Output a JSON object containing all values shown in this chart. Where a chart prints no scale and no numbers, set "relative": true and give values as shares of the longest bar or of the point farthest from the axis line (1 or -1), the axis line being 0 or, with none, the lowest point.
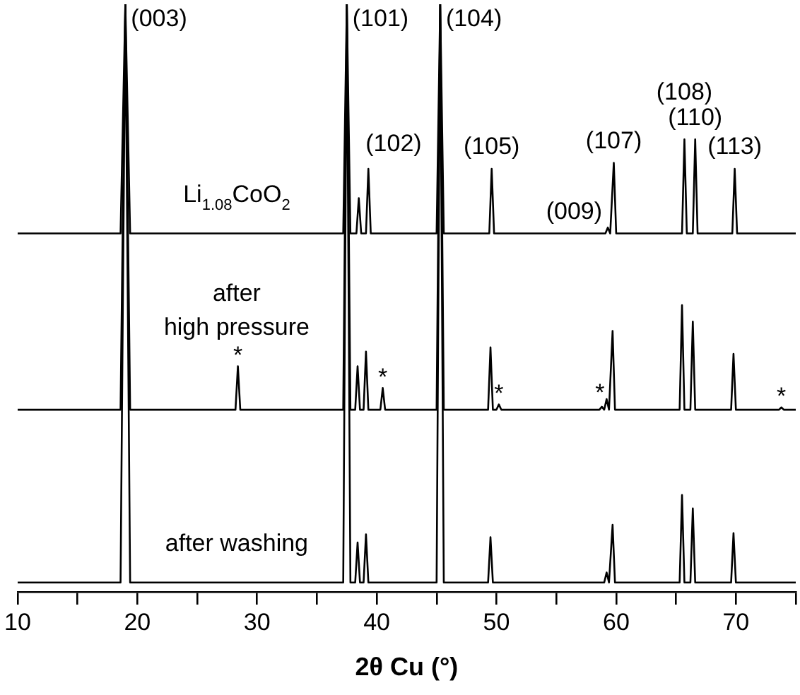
{
  "chart_data": {
    "type": "line",
    "relative": true,
    "xlabel": "2θ Cu (°)",
    "xlim": [
      10,
      75
    ],
    "xticks": [
      10,
      {
        "value": 15,
        "label": null
      },
      20,
      {
        "value": 25,
        "label": null
      },
      30,
      {
        "value": 35,
        "label": null
      },
      40,
      {
        "value": 45,
        "label": null
      },
      50,
      {
        "value": 55,
        "label": null
      },
      60,
      {
        "value": 65,
        "label": null
      },
      70,
      {
        "value": 75,
        "label": null
      }
    ],
    "marker": "none",
    "line_style": "solid",
    "grid": false,
    "legend": false,
    "series": [
      {
        "name": "Li$_{1.08}$CoO$_{2}$",
        "color": "#000000",
        "x": [
          10,
          18.6,
          19.0,
          19.4,
          37.2,
          37.5,
          37.8,
          38.3,
          38.5,
          38.7,
          39.1,
          39.3,
          39.5,
          45.0,
          45.3,
          45.6,
          49.4,
          49.6,
          49.8,
          59.1,
          59.3,
          59.5,
          59.8,
          60.0,
          65.5,
          65.7,
          65.9,
          66.4,
          66.6,
          66.8,
          69.7,
          69.9,
          70.1,
          75
        ],
        "values": [
          0.61,
          0.61,
          1,
          0.61,
          0.61,
          1,
          0.61,
          0.61,
          0.67,
          0.61,
          0.61,
          0.72,
          0.61,
          0.61,
          1,
          0.61,
          0.61,
          0.72,
          0.61,
          0.61,
          0.62,
          0.61,
          0.73,
          0.61,
          0.61,
          0.77,
          0.61,
          0.61,
          0.77,
          0.61,
          0.61,
          0.72,
          0.61,
          0.61
        ]
      },
      {
        "name": "after high pressure",
        "color": "#000000",
        "x": [
          10,
          18.6,
          19.0,
          19.4,
          28.2,
          28.4,
          28.6,
          37.2,
          37.5,
          37.8,
          38.2,
          38.4,
          38.6,
          38.9,
          39.1,
          39.3,
          40.3,
          40.5,
          40.7,
          45.0,
          45.3,
          45.6,
          49.3,
          49.5,
          49.7,
          50.0,
          50.2,
          50.4,
          58.6,
          58.8,
          59.0,
          59.2,
          59.4,
          59.7,
          59.9,
          65.3,
          65.5,
          65.7,
          66.2,
          66.4,
          66.6,
          69.6,
          69.8,
          70.0,
          73.6,
          73.8,
          74.0,
          75
        ],
        "values": [
          0.31,
          0.31,
          1,
          0.31,
          0.31,
          0.384,
          0.31,
          0.31,
          1,
          0.31,
          0.31,
          0.384,
          0.31,
          0.31,
          0.409,
          0.31,
          0.31,
          0.347,
          0.31,
          0.31,
          1,
          0.31,
          0.31,
          0.416,
          0.31,
          0.31,
          0.319,
          0.31,
          0.31,
          0.315,
          0.31,
          0.328,
          0.31,
          0.444,
          0.31,
          0.31,
          0.488,
          0.31,
          0.31,
          0.46,
          0.31,
          0.31,
          0.405,
          0.31,
          0.31,
          0.314,
          0.31,
          0.31
        ]
      },
      {
        "name": "after washing",
        "color": "#000000",
        "x": [
          10,
          18.6,
          19.0,
          19.4,
          37.2,
          37.5,
          37.8,
          38.2,
          38.4,
          38.6,
          38.9,
          39.1,
          39.3,
          45.0,
          45.3,
          45.6,
          49.3,
          49.5,
          49.7,
          59.0,
          59.2,
          59.4,
          59.7,
          59.9,
          65.3,
          65.5,
          65.7,
          66.2,
          66.4,
          66.6,
          69.6,
          69.8,
          70.0,
          75
        ],
        "values": [
          0.016,
          0.016,
          1,
          0.016,
          0.016,
          1,
          0.016,
          0.016,
          0.084,
          0.016,
          0.016,
          0.098,
          0.016,
          0.016,
          1,
          0.016,
          0.016,
          0.093,
          0.016,
          0.016,
          0.033,
          0.016,
          0.114,
          0.016,
          0.016,
          0.165,
          0.016,
          0.016,
          0.142,
          0.016,
          0.016,
          0.1,
          0.016,
          0.016
        ]
      }
    ],
    "annotations": [
      {
        "text": "(003)",
        "x": 19.0,
        "y": 1
      },
      {
        "text": "(101)",
        "x": 37.5,
        "y": 1
      },
      {
        "text": "(104)",
        "x": 45.3,
        "y": 1
      },
      {
        "text": "(102)",
        "x": 39.3,
        "y": 0.72
      },
      {
        "text": "(105)",
        "x": 49.6,
        "y": 0.72
      },
      {
        "text": "(107)",
        "x": 59.8,
        "y": 0.73
      },
      {
        "text": "(009)",
        "x": 59.3,
        "y": 0.62
      },
      {
        "text": "(113)",
        "x": 69.9,
        "y": 0.72
      },
      {
        "text": "(110)",
        "x": 66.6,
        "y": 0.77
      },
      {
        "text": "(108)",
        "x": 65.7,
        "y": 0.77
      },
      {
        "text": "*",
        "x": 28.4,
        "y": 0.384
      },
      {
        "text": "*",
        "x": 40.5,
        "y": 0.347
      },
      {
        "text": "*",
        "x": 50.2,
        "y": 0.319
      },
      {
        "text": "*",
        "x": 58.8,
        "y": 0.315
      },
      {
        "text": "*",
        "x": 73.8,
        "y": 0.314
      }
    ]
  }
}
